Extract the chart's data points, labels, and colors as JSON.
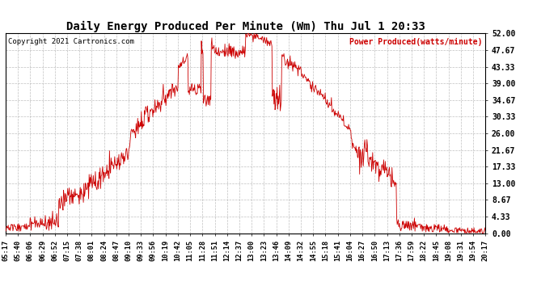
{
  "title": "Daily Energy Produced Per Minute (Wm) Thu Jul 1 20:33",
  "copyright": "Copyright 2021 Cartronics.com",
  "legend_label": "Power Produced(watts/minute)",
  "bg_color": "#ffffff",
  "line_color": "#cc0000",
  "grid_color": "#b0b0b0",
  "y_max": 52.0,
  "y_min": 0.0,
  "y_ticks": [
    0.0,
    4.33,
    8.67,
    13.0,
    17.33,
    21.67,
    26.0,
    30.33,
    34.67,
    39.0,
    43.33,
    47.67,
    52.0
  ],
  "x_tick_labels": [
    "05:17",
    "05:40",
    "06:06",
    "06:29",
    "06:52",
    "07:15",
    "07:38",
    "08:01",
    "08:24",
    "08:47",
    "09:10",
    "09:33",
    "09:56",
    "10:19",
    "10:42",
    "11:05",
    "11:28",
    "11:51",
    "12:14",
    "12:37",
    "13:00",
    "13:23",
    "13:46",
    "14:09",
    "14:32",
    "14:55",
    "15:18",
    "15:41",
    "16:04",
    "16:27",
    "16:50",
    "17:13",
    "17:36",
    "17:59",
    "18:22",
    "18:45",
    "19:08",
    "19:31",
    "19:54",
    "20:17"
  ],
  "n_xticks": 40
}
